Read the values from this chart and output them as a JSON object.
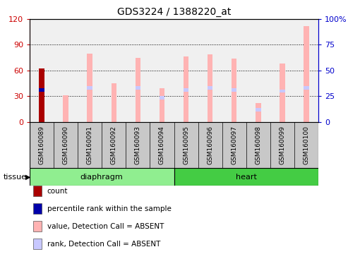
{
  "title": "GDS3224 / 1388220_at",
  "samples": [
    "GSM160089",
    "GSM160090",
    "GSM160091",
    "GSM160092",
    "GSM160093",
    "GSM160094",
    "GSM160095",
    "GSM160096",
    "GSM160097",
    "GSM160098",
    "GSM160099",
    "GSM160100"
  ],
  "tissue_groups": [
    {
      "label": "diaphragm",
      "start": 0,
      "end": 6
    },
    {
      "label": "heart",
      "start": 6,
      "end": 12
    }
  ],
  "value_bars": [
    0,
    31,
    80,
    45,
    75,
    39,
    76,
    79,
    74,
    22,
    68,
    112
  ],
  "rank_marker_pos": [
    37,
    0,
    40,
    0,
    40,
    28,
    37,
    40,
    37,
    14,
    36,
    40
  ],
  "count_bar_sample": 0,
  "count_bar_value": 62,
  "percentile_rank_value": 37,
  "ylim_left": [
    0,
    120
  ],
  "ylim_right": [
    0,
    100
  ],
  "yticks_left": [
    0,
    30,
    60,
    90,
    120
  ],
  "yticks_right": [
    0,
    25,
    50,
    75,
    100
  ],
  "ytick_labels_left": [
    "0",
    "30",
    "60",
    "90",
    "120"
  ],
  "ytick_labels_right": [
    "0",
    "25",
    "50",
    "75",
    "100%"
  ],
  "color_value_bar": "#FFB3B3",
  "color_rank_bar": "#C8C8FF",
  "color_count_bar": "#AA0000",
  "color_percentile_bar": "#0000AA",
  "color_tissue_diaphragm": "#90EE90",
  "color_tissue_heart": "#44CC44",
  "color_axis_left": "#CC0000",
  "color_axis_right": "#0000CC",
  "background_plot": "#F0F0F0",
  "background_label": "#C8C8C8",
  "legend_items": [
    {
      "color": "#AA0000",
      "label": "count"
    },
    {
      "color": "#0000AA",
      "label": "percentile rank within the sample"
    },
    {
      "color": "#FFB3B3",
      "label": "value, Detection Call = ABSENT"
    },
    {
      "color": "#C8C8FF",
      "label": "rank, Detection Call = ABSENT"
    }
  ]
}
